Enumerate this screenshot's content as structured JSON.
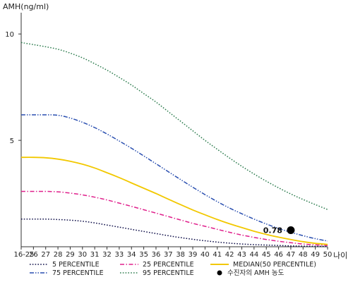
{
  "chart_data": {
    "type": "line",
    "ylabel": "AMH(ng/ml)",
    "xlabel": "나이",
    "ylim": [
      0,
      11
    ],
    "yticks": [
      5,
      10
    ],
    "ytick_labels": [
      "5",
      "10"
    ],
    "x": [
      "16-25",
      "26",
      "27",
      "28",
      "29",
      "30",
      "31",
      "32",
      "33",
      "34",
      "35",
      "36",
      "37",
      "38",
      "39",
      "40",
      "41",
      "42",
      "43",
      "44",
      "45",
      "46",
      "47",
      "48",
      "49",
      "50"
    ],
    "series": [
      {
        "name": "5 PERCENTILE",
        "color": "#10104a",
        "style": "dotted",
        "values": [
          1.3,
          1.3,
          1.3,
          1.28,
          1.25,
          1.2,
          1.12,
          1.02,
          0.92,
          0.82,
          0.72,
          0.62,
          0.52,
          0.43,
          0.35,
          0.28,
          0.22,
          0.17,
          0.13,
          0.1,
          0.08,
          0.06,
          0.04,
          0.03,
          0.02,
          0.02
        ]
      },
      {
        "name": "25 PERCENTILE",
        "color": "#e0208c",
        "style": "dashdot",
        "values": [
          2.6,
          2.6,
          2.6,
          2.58,
          2.52,
          2.44,
          2.33,
          2.2,
          2.05,
          1.9,
          1.74,
          1.58,
          1.42,
          1.26,
          1.1,
          0.96,
          0.82,
          0.68,
          0.55,
          0.44,
          0.34,
          0.26,
          0.19,
          0.13,
          0.09,
          0.06
        ]
      },
      {
        "name": "MEDIAN(50 PERCENTILE)",
        "color": "#f2c800",
        "style": "solid",
        "values": [
          4.2,
          4.2,
          4.18,
          4.12,
          4.02,
          3.88,
          3.7,
          3.48,
          3.25,
          3.0,
          2.75,
          2.5,
          2.24,
          1.98,
          1.73,
          1.5,
          1.28,
          1.08,
          0.9,
          0.73,
          0.58,
          0.45,
          0.34,
          0.24,
          0.16,
          0.11
        ]
      },
      {
        "name": "75 PERCENTILE",
        "color": "#2a4fb0",
        "style": "dashdotdot",
        "values": [
          6.2,
          6.2,
          6.2,
          6.18,
          6.05,
          5.85,
          5.6,
          5.3,
          4.97,
          4.63,
          4.27,
          3.9,
          3.53,
          3.16,
          2.8,
          2.45,
          2.12,
          1.82,
          1.55,
          1.3,
          1.07,
          0.86,
          0.68,
          0.52,
          0.38,
          0.27
        ]
      },
      {
        "name": "95 PERCENTILE",
        "color": "#2e7d4f",
        "style": "dotted",
        "values": [
          9.6,
          9.5,
          9.4,
          9.28,
          9.1,
          8.88,
          8.6,
          8.3,
          7.96,
          7.6,
          7.2,
          6.8,
          6.35,
          5.9,
          5.45,
          5.0,
          4.58,
          4.17,
          3.78,
          3.42,
          3.08,
          2.77,
          2.48,
          2.22,
          1.98,
          1.75
        ]
      }
    ],
    "marker": {
      "name": "수진자의 AMH 농도",
      "x": "47",
      "y": 0.78,
      "label": "0.78",
      "color": "#000000"
    },
    "legend_position": "bottom"
  }
}
